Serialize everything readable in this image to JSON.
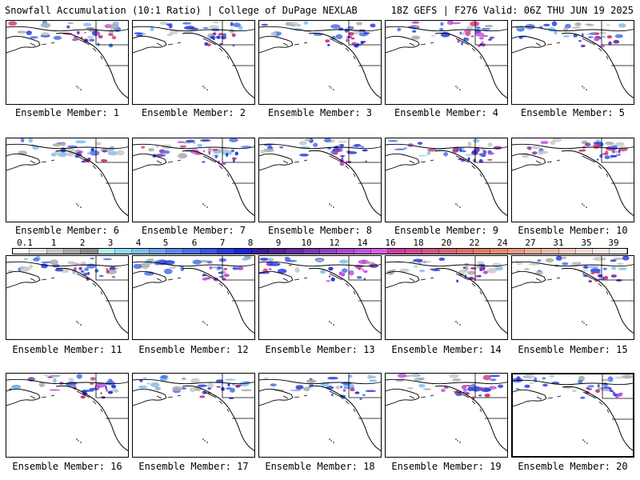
{
  "header": {
    "left": "Snowfall Accumulation (10:1 Ratio) | College of DuPage NEXLAB",
    "right": "18Z GEFS | F276 Valid: 06Z THU JUN 19 2025"
  },
  "panels": [
    {
      "caption": "Ensemble Member: 1"
    },
    {
      "caption": "Ensemble Member: 2"
    },
    {
      "caption": "Ensemble Member: 3"
    },
    {
      "caption": "Ensemble Member: 4"
    },
    {
      "caption": "Ensemble Member: 5"
    },
    {
      "caption": "Ensemble Member: 6"
    },
    {
      "caption": "Ensemble Member: 7"
    },
    {
      "caption": "Ensemble Member: 8"
    },
    {
      "caption": "Ensemble Member: 9"
    },
    {
      "caption": "Ensemble Member: 10"
    },
    {
      "caption": "Ensemble Member: 11"
    },
    {
      "caption": "Ensemble Member: 12"
    },
    {
      "caption": "Ensemble Member: 13"
    },
    {
      "caption": "Ensemble Member: 14"
    },
    {
      "caption": "Ensemble Member: 15"
    },
    {
      "caption": "Ensemble Member: 16"
    },
    {
      "caption": "Ensemble Member: 17"
    },
    {
      "caption": "Ensemble Member: 18"
    },
    {
      "caption": "Ensemble Member: 19"
    },
    {
      "caption": "Ensemble Member: 20"
    }
  ],
  "colorbar": {
    "labels": [
      "0.1",
      "1",
      "2",
      "3",
      "4",
      "5",
      "6",
      "7",
      "8",
      "9",
      "10",
      "12",
      "14",
      "16",
      "18",
      "20",
      "22",
      "24",
      "27",
      "31",
      "35",
      "39"
    ],
    "colors": [
      "#ffffff",
      "#e6e6e6",
      "#c8c8c8",
      "#a9a9a9",
      "#8a8a8a",
      "#b0f0f5",
      "#8ee0f2",
      "#7dbef0",
      "#6ca4ee",
      "#5b8aeb",
      "#4a70e8",
      "#3a56e4",
      "#2a3ce0",
      "#1a22d8",
      "#3a1a9a",
      "#50248f",
      "#662e9e",
      "#7c38ad",
      "#9242bc",
      "#a84ccb",
      "#be56da",
      "#d460e0",
      "#c8409c",
      "#cc4c90",
      "#d05884",
      "#d46478",
      "#d8706c",
      "#dc7c60",
      "#e08c70",
      "#e49c84",
      "#e8ac98",
      "#ecbcac",
      "#f0ccc0",
      "#f4dcd4",
      "#f8e6e0",
      "#fcf0ec"
    ]
  }
}
